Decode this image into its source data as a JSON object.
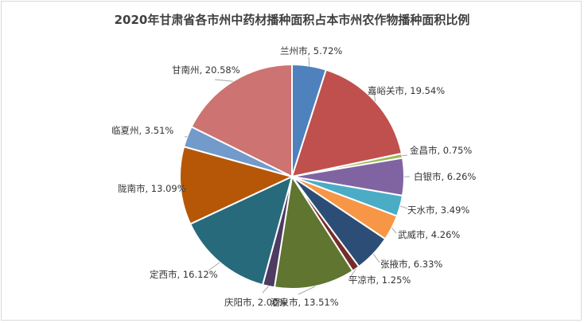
{
  "chart_data": {
    "type": "pie",
    "title": "2020年甘肃省各市州中药材播种面积占本市州农作物播种面积比例",
    "slices": [
      {
        "label": "兰州市",
        "value": 5.72,
        "display": "5.72%",
        "color": "#4f81bd"
      },
      {
        "label": "嘉峪关市",
        "value": 19.54,
        "display": "19.54%",
        "color": "#c0504d"
      },
      {
        "label": "金昌市",
        "value": 0.75,
        "display": "0.75%",
        "color": "#9bbb59"
      },
      {
        "label": "白银市",
        "value": 6.26,
        "display": "6.26%",
        "color": "#8064a2"
      },
      {
        "label": "天水市",
        "value": 3.49,
        "display": "3.49%",
        "color": "#4bacc6"
      },
      {
        "label": "武威市",
        "value": 4.26,
        "display": "4.26%",
        "color": "#f79646"
      },
      {
        "label": "张掖市",
        "value": 6.33,
        "display": "6.33%",
        "color": "#2c4d75"
      },
      {
        "label": "平凉市",
        "value": 1.25,
        "display": "1.25%",
        "color": "#772c2a"
      },
      {
        "label": "酒泉市",
        "value": 13.51,
        "display": "13.51%",
        "color": "#5f7530"
      },
      {
        "label": "庆阳市",
        "value": 2.0,
        "display": "2.00%",
        "color": "#4d3b62"
      },
      {
        "label": "定西市",
        "value": 16.12,
        "display": "16.12%",
        "color": "#276a7c"
      },
      {
        "label": "陇南市",
        "value": 13.09,
        "display": "13.09%",
        "color": "#b65708"
      },
      {
        "label": "临夏州",
        "value": 3.51,
        "display": "3.51%",
        "color": "#729aca"
      },
      {
        "label": "甘南州",
        "value": 20.58,
        "display": "20.58%",
        "color": "#cd7371"
      }
    ],
    "legend": "none",
    "start_angle": "12 o'clock, clockwise"
  }
}
